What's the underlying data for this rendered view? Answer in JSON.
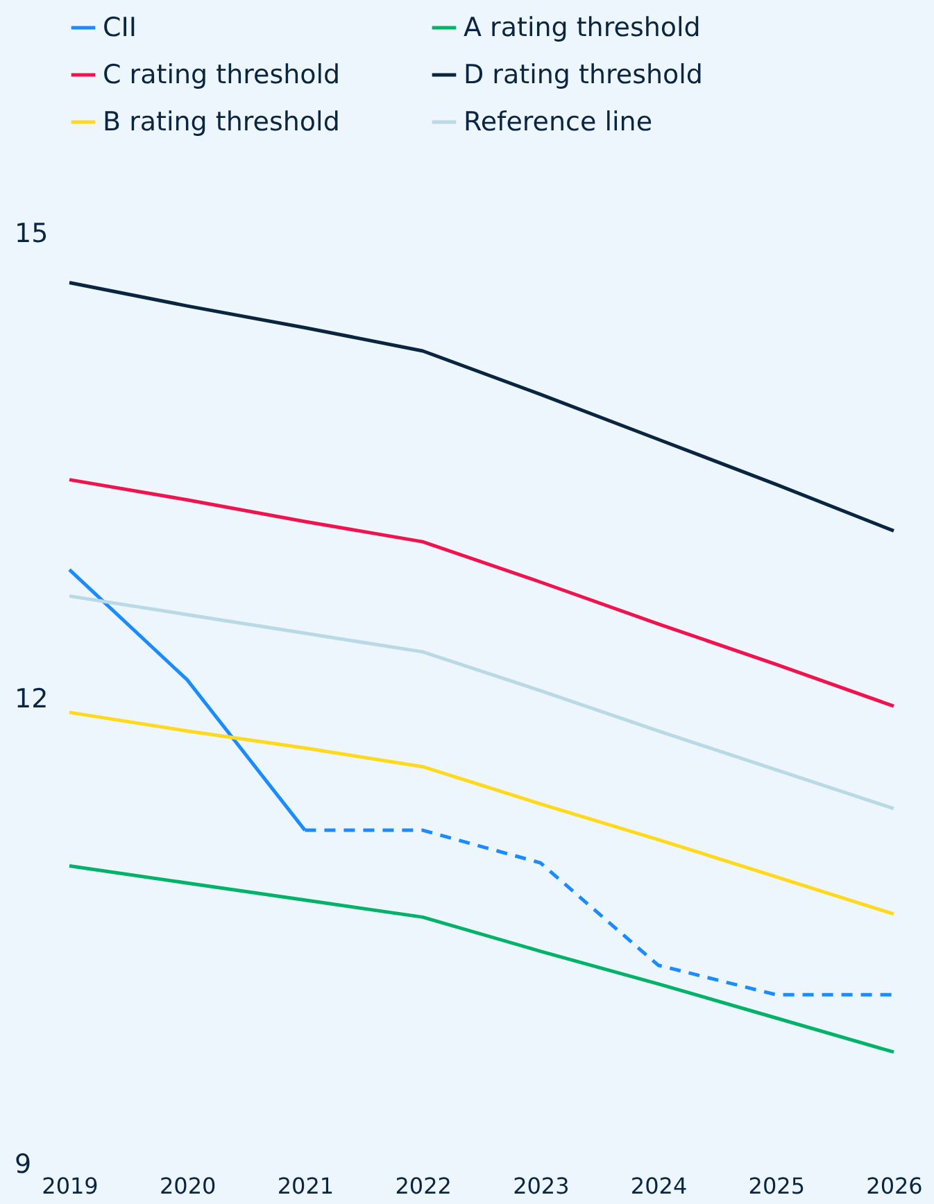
{
  "chart_data": {
    "type": "line",
    "x": [
      2019,
      2020,
      2021,
      2022,
      2023,
      2024,
      2025,
      2026
    ],
    "series": [
      {
        "name": "CII",
        "color": "#1a8cff",
        "values": [
          12.83,
          12.12,
          11.15,
          null,
          null,
          null,
          null,
          null
        ]
      },
      {
        "name": "A rating threshold",
        "color": "#00b368",
        "values": [
          10.92,
          10.81,
          10.7,
          10.59,
          10.37,
          10.16,
          9.94,
          9.72
        ]
      },
      {
        "name": "C rating threshold",
        "color": "#f0134d",
        "values": [
          13.41,
          13.28,
          13.14,
          13.01,
          12.75,
          12.48,
          12.22,
          11.95
        ]
      },
      {
        "name": "D rating threshold",
        "color": "#0a2540",
        "values": [
          14.68,
          14.53,
          14.39,
          14.24,
          13.96,
          13.67,
          13.38,
          13.08
        ]
      },
      {
        "name": "B rating threshold",
        "color": "#ffd91a",
        "values": [
          11.91,
          11.79,
          11.68,
          11.56,
          11.32,
          11.09,
          10.85,
          10.61
        ]
      },
      {
        "name": "Reference line",
        "color": "#b9d9e6",
        "values": [
          12.66,
          12.54,
          12.42,
          12.3,
          12.05,
          11.79,
          11.54,
          11.29
        ]
      },
      {
        "color": "#1a8cff",
        "line_style": "dashed",
        "values": [
          null,
          null,
          11.15,
          11.15,
          10.94,
          10.28,
          10.09,
          10.09
        ]
      }
    ],
    "xlim": [
      2019,
      2026
    ],
    "xticks": [
      2019,
      2020,
      2021,
      2022,
      2023,
      2024,
      2025,
      2026
    ],
    "ylim": [
      9,
      15
    ],
    "yticks": [
      9,
      12,
      15
    ],
    "grid": false,
    "legend": "top",
    "marker": "none",
    "line_style": "solid"
  }
}
